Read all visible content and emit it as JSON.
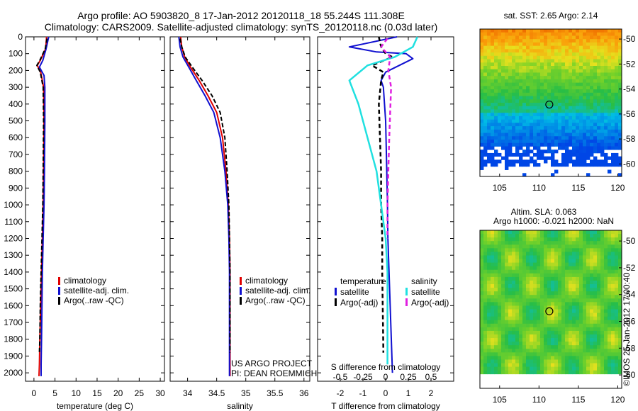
{
  "header": {
    "line1": "Argo profile: AO 5903820_8 17-Jan-2012 20120118_18 55.244S 111.308E",
    "line2": "Climatology: CARS2009. Satellite-adjusted climatology: synTS_20120118.nc (0.03d later)"
  },
  "credits": {
    "project": "US ARGO PROJECT",
    "pi": "PI: DEAN ROEMMICH",
    "stamp": "©IMOS 25-Jan-2012 17:00:40"
  },
  "colors": {
    "climatology": "#e00000",
    "satellite": "#1010d0",
    "argo": "#000000",
    "sal_satellite": "#20e0e0",
    "sal_argo": "#e020e0"
  },
  "chart_data": [
    {
      "type": "line",
      "xlabel": "temperature (deg C)",
      "ylabel": "",
      "xlim": [
        -2,
        31
      ],
      "ylim": [
        2050,
        0
      ],
      "xticks": [
        0,
        5,
        10,
        15,
        20,
        25,
        30
      ],
      "yticks": [
        0,
        100,
        200,
        300,
        400,
        500,
        600,
        700,
        800,
        900,
        1000,
        1100,
        1200,
        1300,
        1400,
        1500,
        1600,
        1700,
        1800,
        1900,
        2000
      ],
      "legend": [
        "climatology",
        "satellite-adj. clim.",
        "Argo(..raw -QC)"
      ],
      "legend_position": "center",
      "series": [
        {
          "name": "climatology",
          "x": [
            3.0,
            2.8,
            1.5,
            0.8,
            1.6,
            2.3,
            2.4,
            2.3,
            2.2,
            2.0,
            1.8,
            1.6,
            1.4,
            1.3,
            1.2
          ],
          "y": [
            0,
            70,
            140,
            170,
            210,
            300,
            500,
            800,
            1000,
            1200,
            1400,
            1600,
            1800,
            1950,
            2020
          ]
        },
        {
          "name": "satellite-adj. clim.",
          "x": [
            3.5,
            2.9,
            2.1,
            1.3,
            2.4,
            2.6,
            2.6,
            2.5,
            2.4,
            2.2,
            2.0,
            1.9,
            1.8,
            1.7,
            1.7
          ],
          "y": [
            0,
            70,
            140,
            180,
            230,
            300,
            500,
            800,
            1000,
            1200,
            1400,
            1600,
            1800,
            1950,
            2020
          ]
        },
        {
          "name": "Argo(..raw -QC)",
          "x": [
            3.1,
            2.7,
            1.4,
            0.7,
            1.5,
            2.2,
            2.3,
            2.2,
            2.1,
            1.9,
            1.7,
            1.5,
            1.4,
            1.3
          ],
          "y": [
            10,
            70,
            140,
            170,
            210,
            300,
            500,
            800,
            1000,
            1200,
            1400,
            1600,
            1800,
            1880
          ]
        }
      ]
    },
    {
      "type": "line",
      "xlabel": "salinity",
      "ylabel": "",
      "xlim": [
        33.7,
        36.1
      ],
      "ylim": [
        2050,
        0
      ],
      "xticks": [
        34,
        34.5,
        35,
        35.5,
        36
      ],
      "legend": [
        "climatology",
        "satellite-adj. clim.",
        "Argo(..raw -QC)"
      ],
      "legend_position": "center",
      "series": [
        {
          "name": "climatology",
          "x": [
            33.88,
            33.9,
            33.95,
            34.05,
            34.2,
            34.35,
            34.5,
            34.6,
            34.66,
            34.7,
            34.72,
            34.73,
            34.73,
            34.73,
            34.73
          ],
          "y": [
            0,
            60,
            120,
            180,
            260,
            350,
            450,
            600,
            800,
            1000,
            1200,
            1400,
            1600,
            1800,
            2020
          ]
        },
        {
          "name": "satellite-adj. clim.",
          "x": [
            33.85,
            33.87,
            33.92,
            34.02,
            34.15,
            34.3,
            34.45,
            34.56,
            34.64,
            34.69,
            34.71,
            34.72,
            34.72,
            34.72,
            34.72
          ],
          "y": [
            0,
            60,
            120,
            180,
            260,
            350,
            450,
            600,
            800,
            1000,
            1200,
            1400,
            1600,
            1800,
            2020
          ]
        },
        {
          "name": "Argo(..raw -QC)",
          "x": [
            33.87,
            33.9,
            33.96,
            34.08,
            34.25,
            34.42,
            34.56,
            34.64,
            34.68,
            34.71,
            34.72,
            34.73,
            34.73,
            34.73
          ],
          "y": [
            10,
            60,
            120,
            180,
            260,
            350,
            450,
            600,
            800,
            1000,
            1200,
            1400,
            1600,
            1880
          ]
        }
      ]
    },
    {
      "type": "line",
      "xlabel": "T difference from climatology",
      "x2label": "S difference from climatology",
      "ylabel": "",
      "xlim": [
        -3,
        3
      ],
      "x2lim": [
        -0.75,
        0.75
      ],
      "ylim": [
        2050,
        0
      ],
      "xticks": [
        -2,
        -1,
        0,
        1,
        2
      ],
      "x2ticks": [
        -0.5,
        -0.25,
        0,
        0.25,
        0.5
      ],
      "legend_groups": [
        {
          "title": "temperature",
          "entries": [
            "satellite",
            "Argo(-adj)"
          ]
        },
        {
          "title": "salinity",
          "entries": [
            "satellite",
            "Argo(-adj)"
          ]
        }
      ],
      "series": [
        {
          "name": "T satellite",
          "x": [
            0.5,
            -1.6,
            -0.4,
            0.9,
            1.2,
            0.6,
            0.0,
            -0.2,
            -0.1,
            0.0,
            0.05,
            0.08,
            0.1,
            0.15,
            0.2,
            0.25,
            0.3
          ],
          "y": [
            0,
            60,
            90,
            100,
            130,
            170,
            210,
            260,
            300,
            500,
            800,
            1000,
            1200,
            1400,
            1600,
            1800,
            2000
          ]
        },
        {
          "name": "T Argo(-adj)",
          "x": [
            -0.3,
            -0.2,
            0.0,
            0.3,
            -0.6,
            -0.1,
            -0.2,
            -0.3,
            -0.25,
            -0.2,
            -0.2,
            -0.15,
            -0.15,
            -0.1
          ],
          "y": [
            0,
            60,
            100,
            120,
            170,
            210,
            260,
            400,
            600,
            800,
            1000,
            1200,
            1400,
            1880
          ]
        },
        {
          "name": "S satellite",
          "x": [
            0.35,
            0.3,
            0.1,
            -0.2,
            -0.4,
            -0.3,
            -0.2,
            -0.1,
            -0.05,
            0.0,
            0.02,
            0.02,
            0.02,
            0.02
          ],
          "y": [
            0,
            60,
            120,
            170,
            260,
            400,
            600,
            800,
            1000,
            1200,
            1400,
            1600,
            1800,
            1950
          ]
        },
        {
          "name": "S Argo(-adj)",
          "x": [
            0.02,
            -0.05,
            0.05,
            0.03,
            0.06,
            0.05,
            0.04,
            0.03,
            0.02,
            0.02
          ],
          "y": [
            10,
            60,
            120,
            200,
            300,
            450,
            600,
            800,
            1000,
            1200
          ]
        }
      ]
    },
    {
      "type": "heatmap",
      "title": "sat. SST: 2.65 Argo: 2.14",
      "xlim": [
        102.5,
        120.5
      ],
      "ylim": [
        -61,
        -49.2
      ],
      "xticks": [
        105,
        110,
        115,
        120
      ],
      "yticks": [
        -50,
        -52,
        -54,
        -56,
        -58,
        -60
      ],
      "marker": {
        "lon": 111.308,
        "lat": -55.244
      }
    },
    {
      "type": "heatmap",
      "title": "Altim. SLA: 0.063",
      "subtitle": "Argo h1000: -0.021 h2000: NaN",
      "xlim": [
        102.5,
        120.5
      ],
      "ylim": [
        -61,
        -49.2
      ],
      "xticks": [
        105,
        110,
        115,
        120
      ],
      "yticks": [
        -50,
        -52,
        -54,
        -56,
        -58,
        -60
      ],
      "marker": {
        "lon": 111.308,
        "lat": -55.244
      }
    }
  ]
}
